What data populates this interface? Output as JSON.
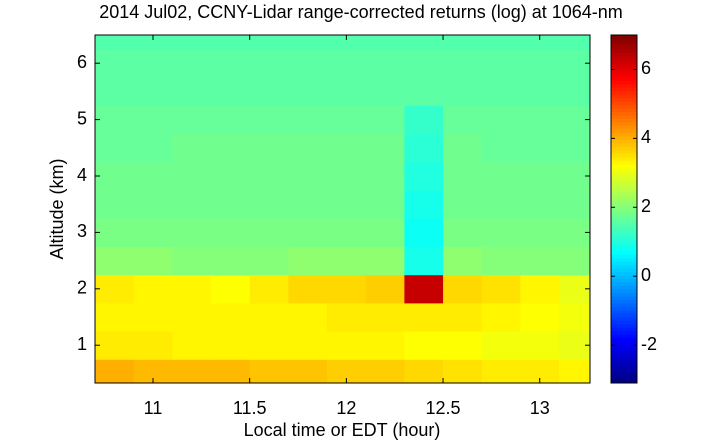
{
  "chart_data": {
    "type": "heatmap",
    "title": "2014 Jul02, CCNY-Lidar range-corrected returns (log) at 1064-nm",
    "x_label": "Local time or EDT (hour)",
    "y_label": "Altitude (km)",
    "colormap": "jet",
    "x": [
      10.8,
      11.0,
      11.2,
      11.4,
      11.6,
      11.8,
      12.0,
      12.2,
      12.4,
      12.6,
      12.8,
      13.0,
      13.2
    ],
    "y": [
      0.5,
      1.0,
      1.5,
      2.0,
      2.5,
      3.0,
      3.5,
      4.0,
      4.5,
      5.0,
      5.5,
      6.0,
      6.5
    ],
    "z": [
      [
        4.0,
        3.9,
        3.9,
        3.9,
        3.8,
        3.8,
        3.7,
        3.7,
        3.6,
        3.5,
        3.4,
        3.4,
        3.3
      ],
      [
        3.4,
        3.4,
        3.3,
        3.3,
        3.3,
        3.3,
        3.3,
        3.3,
        3.2,
        3.2,
        3.1,
        3.1,
        3.0
      ],
      [
        3.3,
        3.3,
        3.3,
        3.3,
        3.3,
        3.3,
        3.4,
        3.4,
        3.4,
        3.4,
        3.3,
        3.2,
        3.1
      ],
      [
        3.4,
        3.3,
        3.3,
        3.2,
        3.4,
        3.6,
        3.6,
        3.7,
        6.3,
        3.6,
        3.5,
        3.3,
        3.0
      ],
      [
        2.1,
        2.1,
        2.0,
        2.0,
        2.0,
        2.1,
        2.1,
        2.1,
        0.9,
        2.1,
        2.0,
        2.0,
        2.0
      ],
      [
        1.9,
        1.9,
        1.9,
        1.9,
        1.9,
        1.9,
        1.9,
        1.9,
        0.8,
        1.9,
        1.9,
        1.9,
        1.9
      ],
      [
        1.8,
        1.8,
        1.8,
        1.8,
        1.8,
        1.8,
        1.8,
        1.8,
        0.9,
        1.8,
        1.8,
        1.8,
        1.8
      ],
      [
        1.8,
        1.8,
        1.8,
        1.8,
        1.8,
        1.8,
        1.8,
        1.8,
        1.0,
        1.8,
        1.8,
        1.8,
        1.8
      ],
      [
        1.7,
        1.7,
        1.8,
        1.8,
        1.8,
        1.8,
        1.8,
        1.8,
        1.1,
        1.8,
        1.7,
        1.7,
        1.7
      ],
      [
        1.7,
        1.7,
        1.7,
        1.7,
        1.7,
        1.7,
        1.7,
        1.7,
        1.2,
        1.7,
        1.7,
        1.7,
        1.7
      ],
      [
        1.6,
        1.6,
        1.6,
        1.6,
        1.6,
        1.6,
        1.6,
        1.6,
        1.6,
        1.6,
        1.6,
        1.6,
        1.6
      ],
      [
        1.6,
        1.6,
        1.6,
        1.6,
        1.6,
        1.6,
        1.6,
        1.6,
        1.6,
        1.6,
        1.6,
        1.6,
        1.6
      ],
      [
        1.5,
        1.5,
        1.5,
        1.5,
        1.5,
        1.5,
        1.5,
        1.5,
        1.5,
        1.5,
        1.5,
        1.5,
        1.5
      ]
    ],
    "xlim": [
      10.7,
      13.26
    ],
    "xticks": [
      11,
      11.5,
      12,
      12.5,
      13
    ],
    "ylim": [
      0.33,
      6.5
    ],
    "yticks": [
      1,
      2,
      3,
      4,
      5,
      6
    ],
    "clim": [
      -3.1,
      7
    ],
    "cticks": [
      -2,
      0,
      2,
      4,
      6
    ]
  }
}
